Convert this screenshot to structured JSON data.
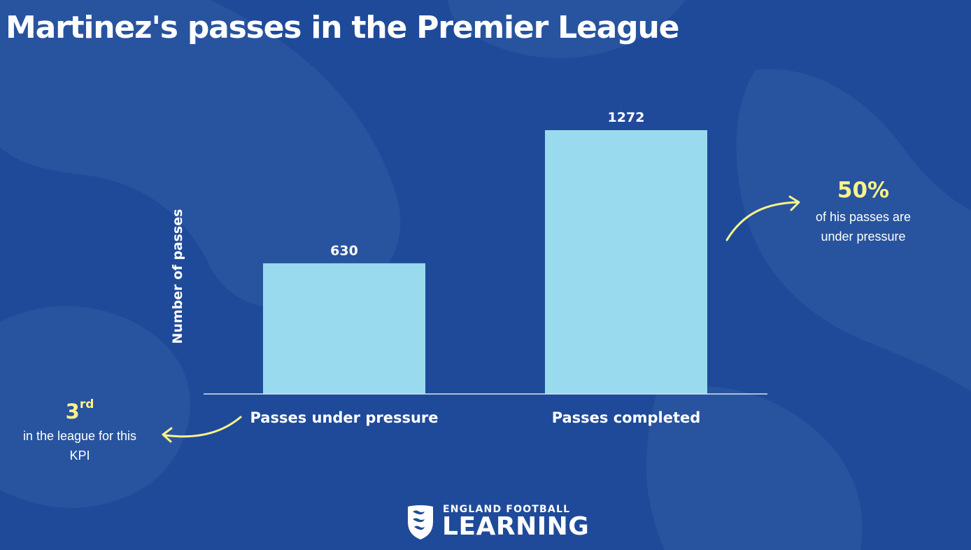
{
  "title": "Martinez's passes in the Premier League",
  "colors": {
    "background": "#1f4a9a",
    "bar": "#9adaee",
    "accent": "#fbf38a",
    "text": "#ffffff",
    "baseline": "#d8e4f2"
  },
  "chart_data": {
    "type": "bar",
    "title": "Martinez's passes in the Premier League",
    "xlabel": "",
    "ylabel": "Number of passes",
    "categories": [
      "Passes under pressure",
      "Passes completed"
    ],
    "values": [
      630,
      1272
    ],
    "data_labels": [
      "630",
      "1272"
    ],
    "ylim": [
      0,
      1272
    ],
    "grid": false,
    "legend": "none"
  },
  "annotations": {
    "right": {
      "value": "50%",
      "line1": "of his passes are",
      "line2": "under pressure"
    },
    "left": {
      "value": "3",
      "suffix": "rd",
      "line1": "in the league for this",
      "line2": "KPI"
    }
  },
  "brand": {
    "top": "ENGLAND FOOTBALL",
    "bottom": "LEARNING",
    "logo_icon": "three-lions-crest-icon"
  },
  "decor": {
    "background_icon": "three-lions-watermark-icon",
    "arrow_icon": "curved-arrow-icon"
  }
}
